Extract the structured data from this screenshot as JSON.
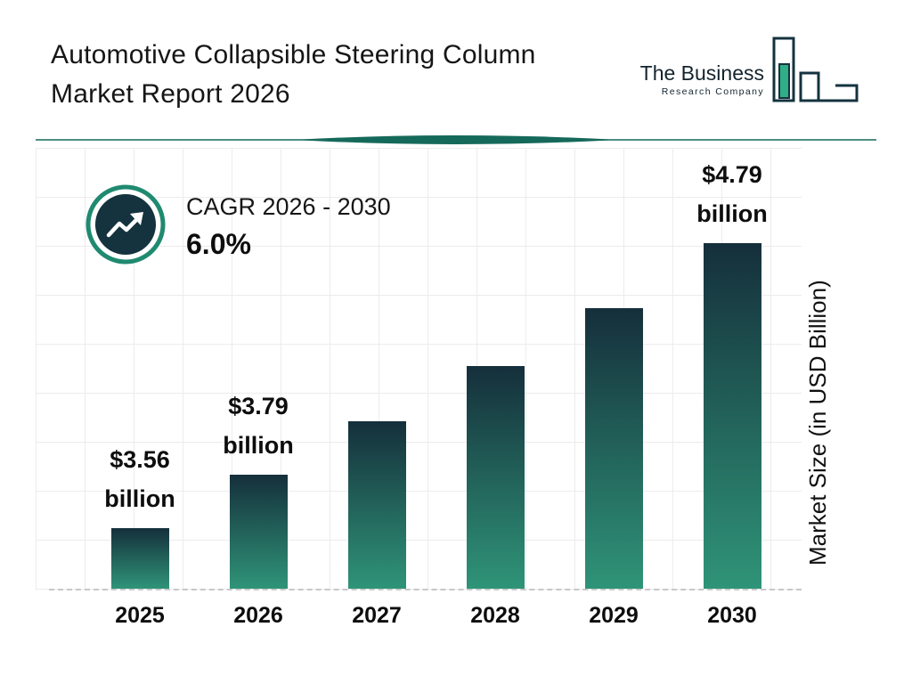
{
  "page": {
    "title_line1": "Automotive Collapsible Steering Column",
    "title_line2": "Market Report 2026"
  },
  "logo": {
    "name_line": "The Business",
    "subtitle_line": "Research Company"
  },
  "cagr": {
    "label": "CAGR 2026 - 2030",
    "value": "6.0%"
  },
  "chart_data": {
    "type": "bar",
    "title": "Automotive Collapsible Steering Column Market Report 2026",
    "categories": [
      "2025",
      "2026",
      "2027",
      "2028",
      "2029",
      "2030"
    ],
    "values": [
      3.56,
      3.79,
      4.02,
      4.26,
      4.51,
      4.79
    ],
    "value_labels": [
      [
        "$3.56",
        "billion"
      ],
      [
        "$3.79",
        "billion"
      ],
      null,
      null,
      null,
      [
        "$4.79",
        "billion"
      ]
    ],
    "xlabel": "",
    "ylabel": "Market Size (in USD Billion)",
    "ylim": [
      3.3,
      5.2
    ],
    "grid": true,
    "legend": false
  },
  "colors": {
    "bar_top": "#152f3b",
    "bar_bottom": "#2f9478",
    "accent_teal": "#1f8a70",
    "divider_teal": "#15695a",
    "icon_circle": "#14333f",
    "logo_fill": "#2fae87",
    "logo_stroke": "#14333f"
  }
}
